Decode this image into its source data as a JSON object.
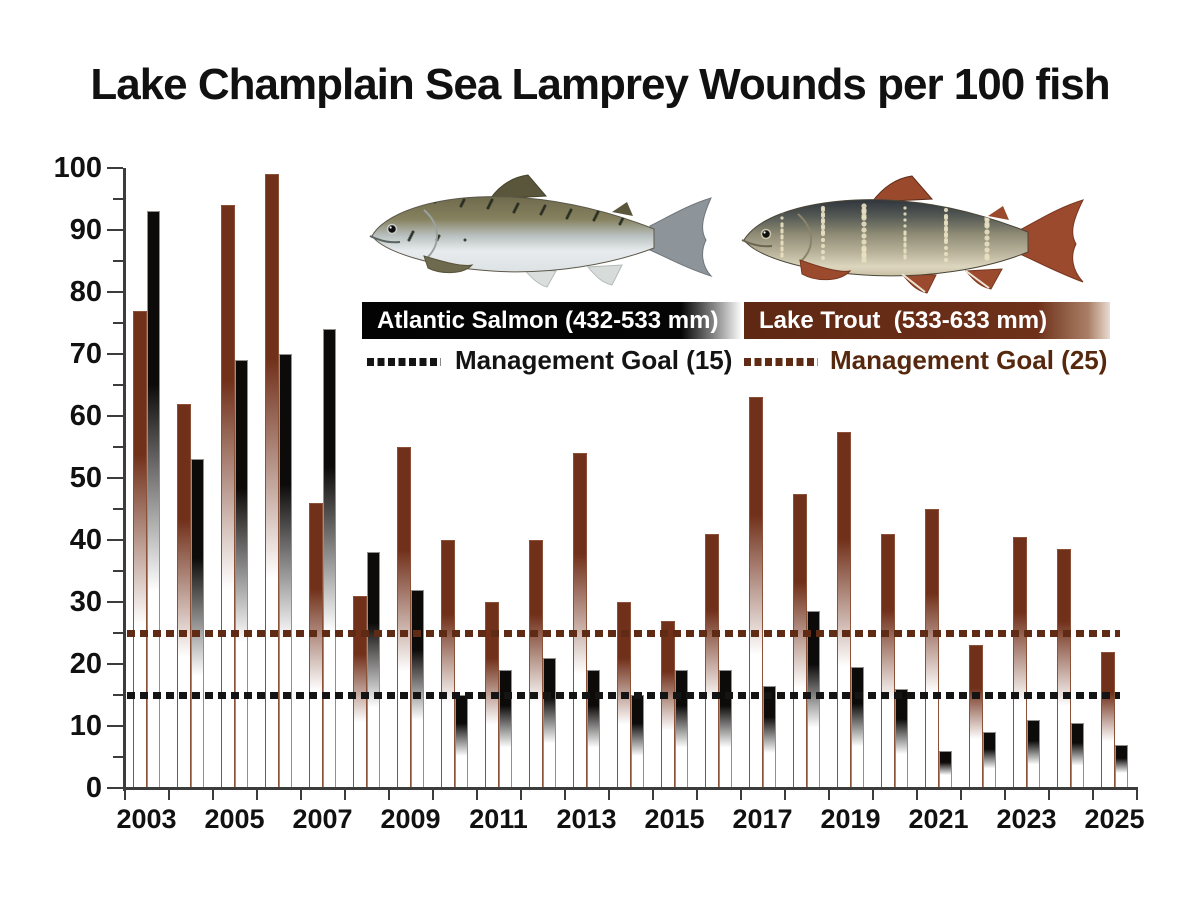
{
  "title": "Lake Champlain Sea Lamprey Wounds per 100 fish",
  "colors": {
    "lake_trout_bar": "#71301A",
    "atlantic_salmon_bar": "#0D0B0A",
    "lake_trout_goal_line": "#5F2B15",
    "atlantic_salmon_goal_line": "#141414",
    "axis": "#3C3C3C",
    "background": "#FFFFFF"
  },
  "legend": {
    "salmon": {
      "image": "atlantic-salmon-fish-illustration",
      "banner_label": "Atlantic Salmon (432-533 mm)",
      "goal_label": "Management Goal (15)",
      "goal_value": 15
    },
    "trout": {
      "image": "lake-trout-fish-illustration",
      "banner_label": "Lake Trout  (533-633 mm)",
      "goal_label": "Management Goal (25)",
      "goal_value": 25
    }
  },
  "chart_data": {
    "type": "bar",
    "title": "Lake Champlain Sea Lamprey Wounds per 100 fish",
    "categories": [
      2003,
      2004,
      2005,
      2006,
      2007,
      2008,
      2009,
      2010,
      2011,
      2012,
      2013,
      2014,
      2015,
      2016,
      2017,
      2018,
      2019,
      2020,
      2021,
      2022,
      2023,
      2024,
      2025
    ],
    "series": [
      {
        "name": "Lake Trout (533-633 mm)",
        "color": "#71301A",
        "border_color": "#8A5138",
        "values": [
          77,
          62,
          94,
          99,
          46,
          31,
          55,
          40,
          30,
          40,
          54,
          30,
          27,
          41,
          63,
          47.5,
          57.5,
          41,
          45,
          23,
          40.5,
          38.5,
          22
        ]
      },
      {
        "name": "Atlantic Salmon (432-533 mm)",
        "color": "#0D0B0A",
        "border_color": "#909090",
        "values": [
          93,
          53,
          69,
          70,
          74,
          38,
          32,
          15,
          19,
          21,
          19,
          15,
          19,
          19,
          16.5,
          28.5,
          19.5,
          16,
          6,
          9,
          11,
          10.5,
          7
        ]
      }
    ],
    "goal_lines": [
      {
        "label": "Management Goal (15)",
        "value": 15,
        "color": "#141414"
      },
      {
        "label": "Management Goal (25)",
        "value": 25,
        "color": "#5F2B15"
      }
    ],
    "ylim": [
      0,
      100
    ],
    "y_tick_labels": [
      "0",
      "10",
      "20",
      "30",
      "40",
      "50",
      "60",
      "70",
      "80",
      "90",
      "100"
    ],
    "y_minor_tick_interval": 5,
    "x_tick_labels": [
      "2003",
      "2005",
      "2007",
      "2009",
      "2011",
      "2013",
      "2015",
      "2017",
      "2019",
      "2021",
      "2023",
      "2025"
    ],
    "grid": false,
    "legend_position": "top-center"
  }
}
